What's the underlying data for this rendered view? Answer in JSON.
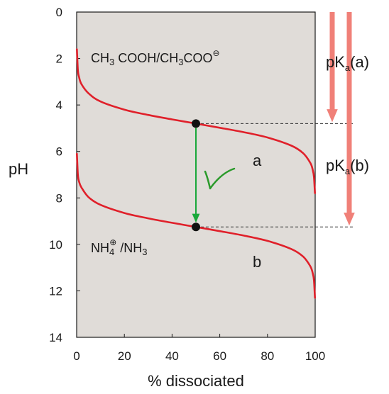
{
  "chart_data": {
    "type": "line",
    "xlabel": "% dissociated",
    "ylabel": "pH",
    "xlim": [
      0,
      100
    ],
    "ylim": [
      0,
      14
    ],
    "y_inverted": true,
    "x_ticks": [
      "0",
      "20",
      "40",
      "60",
      "80",
      "100"
    ],
    "y_ticks": [
      "0",
      "2",
      "4",
      "6",
      "8",
      "10",
      "12",
      "14"
    ],
    "series": [
      {
        "name": "a",
        "formula": "CH3COOH/CH3COO⊖",
        "pKa": 4.8,
        "color": "#e0202a",
        "x": [
          0.1,
          0.5,
          1,
          2,
          5,
          10,
          20,
          30,
          40,
          50,
          60,
          70,
          80,
          90,
          95,
          98,
          99,
          99.5,
          99.9
        ],
        "y": [
          1.6,
          2.5,
          2.8,
          3.1,
          3.5,
          3.85,
          4.2,
          4.43,
          4.62,
          4.8,
          4.98,
          5.17,
          5.4,
          5.75,
          6.08,
          6.5,
          6.8,
          7.1,
          7.8
        ]
      },
      {
        "name": "b",
        "formula": "NH4⊕/NH3",
        "pKa": 9.25,
        "color": "#e0202a",
        "x": [
          0.1,
          0.5,
          1,
          2,
          5,
          10,
          20,
          30,
          40,
          50,
          60,
          70,
          80,
          90,
          95,
          98,
          99,
          99.5,
          99.9
        ],
        "y": [
          6.1,
          7.0,
          7.3,
          7.55,
          7.97,
          8.3,
          8.65,
          8.88,
          9.07,
          9.25,
          9.43,
          9.62,
          9.85,
          10.2,
          10.53,
          10.95,
          11.25,
          11.55,
          12.3
        ]
      }
    ],
    "pKa_points": [
      {
        "x": 50,
        "y": 4.8,
        "color": "#111111"
      },
      {
        "x": 50,
        "y": 9.25,
        "color": "#111111"
      }
    ],
    "annotations": {
      "formula_a_main": "CH",
      "formula_a_sub1": "3",
      "formula_a_mid": " COOH/CH",
      "formula_a_sub2": "3",
      "formula_a_end": "COO",
      "formula_a_sup": "⊖",
      "formula_b_main": "NH",
      "formula_b_sub": "4",
      "formula_b_sup": "⊕",
      "formula_b_end": " /NH",
      "formula_b_sub2": "3",
      "curve_label_a": "a",
      "curve_label_b": "b",
      "pka_a_prefix": "pK",
      "pka_a_sub": "a",
      "pka_a_suffix": "(a)",
      "pka_b_prefix": "pK",
      "pka_b_sub": "a",
      "pka_b_suffix": "(b)"
    },
    "colors": {
      "plot_background": "#e0dcd8",
      "curve": "#e0202a",
      "pka_arrow": "#f08078",
      "shift_arrow": "#1aa83a",
      "checkmark": "#2a9a2a",
      "guide_line": "#333333"
    }
  }
}
